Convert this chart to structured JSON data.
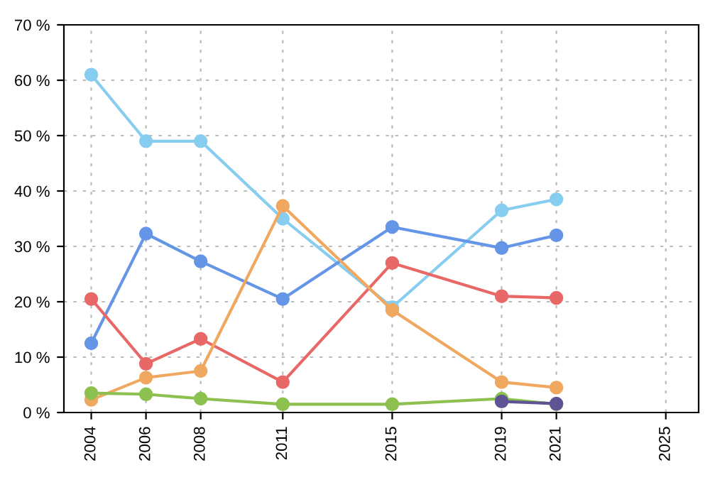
{
  "chart_data": {
    "type": "line",
    "x": [
      2004,
      2006,
      2008,
      2011,
      2015,
      2019,
      2021
    ],
    "series": [
      {
        "color": "#87cdf0",
        "values": [
          61,
          49,
          49,
          35,
          19,
          36.5,
          38.5
        ]
      },
      {
        "color": "#6495e6",
        "values": [
          12.5,
          32.3,
          27.3,
          20.5,
          33.5,
          29.7,
          32
        ]
      },
      {
        "color": "#e86868",
        "values": [
          20.5,
          8.8,
          13.3,
          5.5,
          27,
          21,
          20.7
        ]
      },
      {
        "color": "#f0a860",
        "values": [
          2.3,
          6.3,
          7.5,
          37.3,
          18.5,
          5.5,
          4.5
        ]
      },
      {
        "color": "#8cc150",
        "values": [
          3.5,
          3.3,
          2.5,
          1.5,
          1.5,
          2.5,
          1.5
        ]
      },
      {
        "color": "#5e5494",
        "values": [
          null,
          null,
          null,
          null,
          null,
          2.0,
          1.6
        ]
      }
    ],
    "xlim": [
      2003,
      2026.2
    ],
    "xticks": [
      2004,
      2006,
      2008,
      2011,
      2015,
      2019,
      2021,
      2025
    ],
    "ylim": [
      0,
      70
    ],
    "yticks": [
      {
        "value": 0,
        "label": "0 %"
      },
      {
        "value": 10,
        "label": "10 %"
      },
      {
        "value": 20,
        "label": "20 %"
      },
      {
        "value": 30,
        "label": "30 %"
      },
      {
        "value": 40,
        "label": "40 %"
      },
      {
        "value": 50,
        "label": "50 %"
      },
      {
        "value": 60,
        "label": "60 %"
      },
      {
        "value": 70,
        "label": "70 %"
      }
    ],
    "grid": true,
    "marker": "circle",
    "line_style": "solid"
  }
}
